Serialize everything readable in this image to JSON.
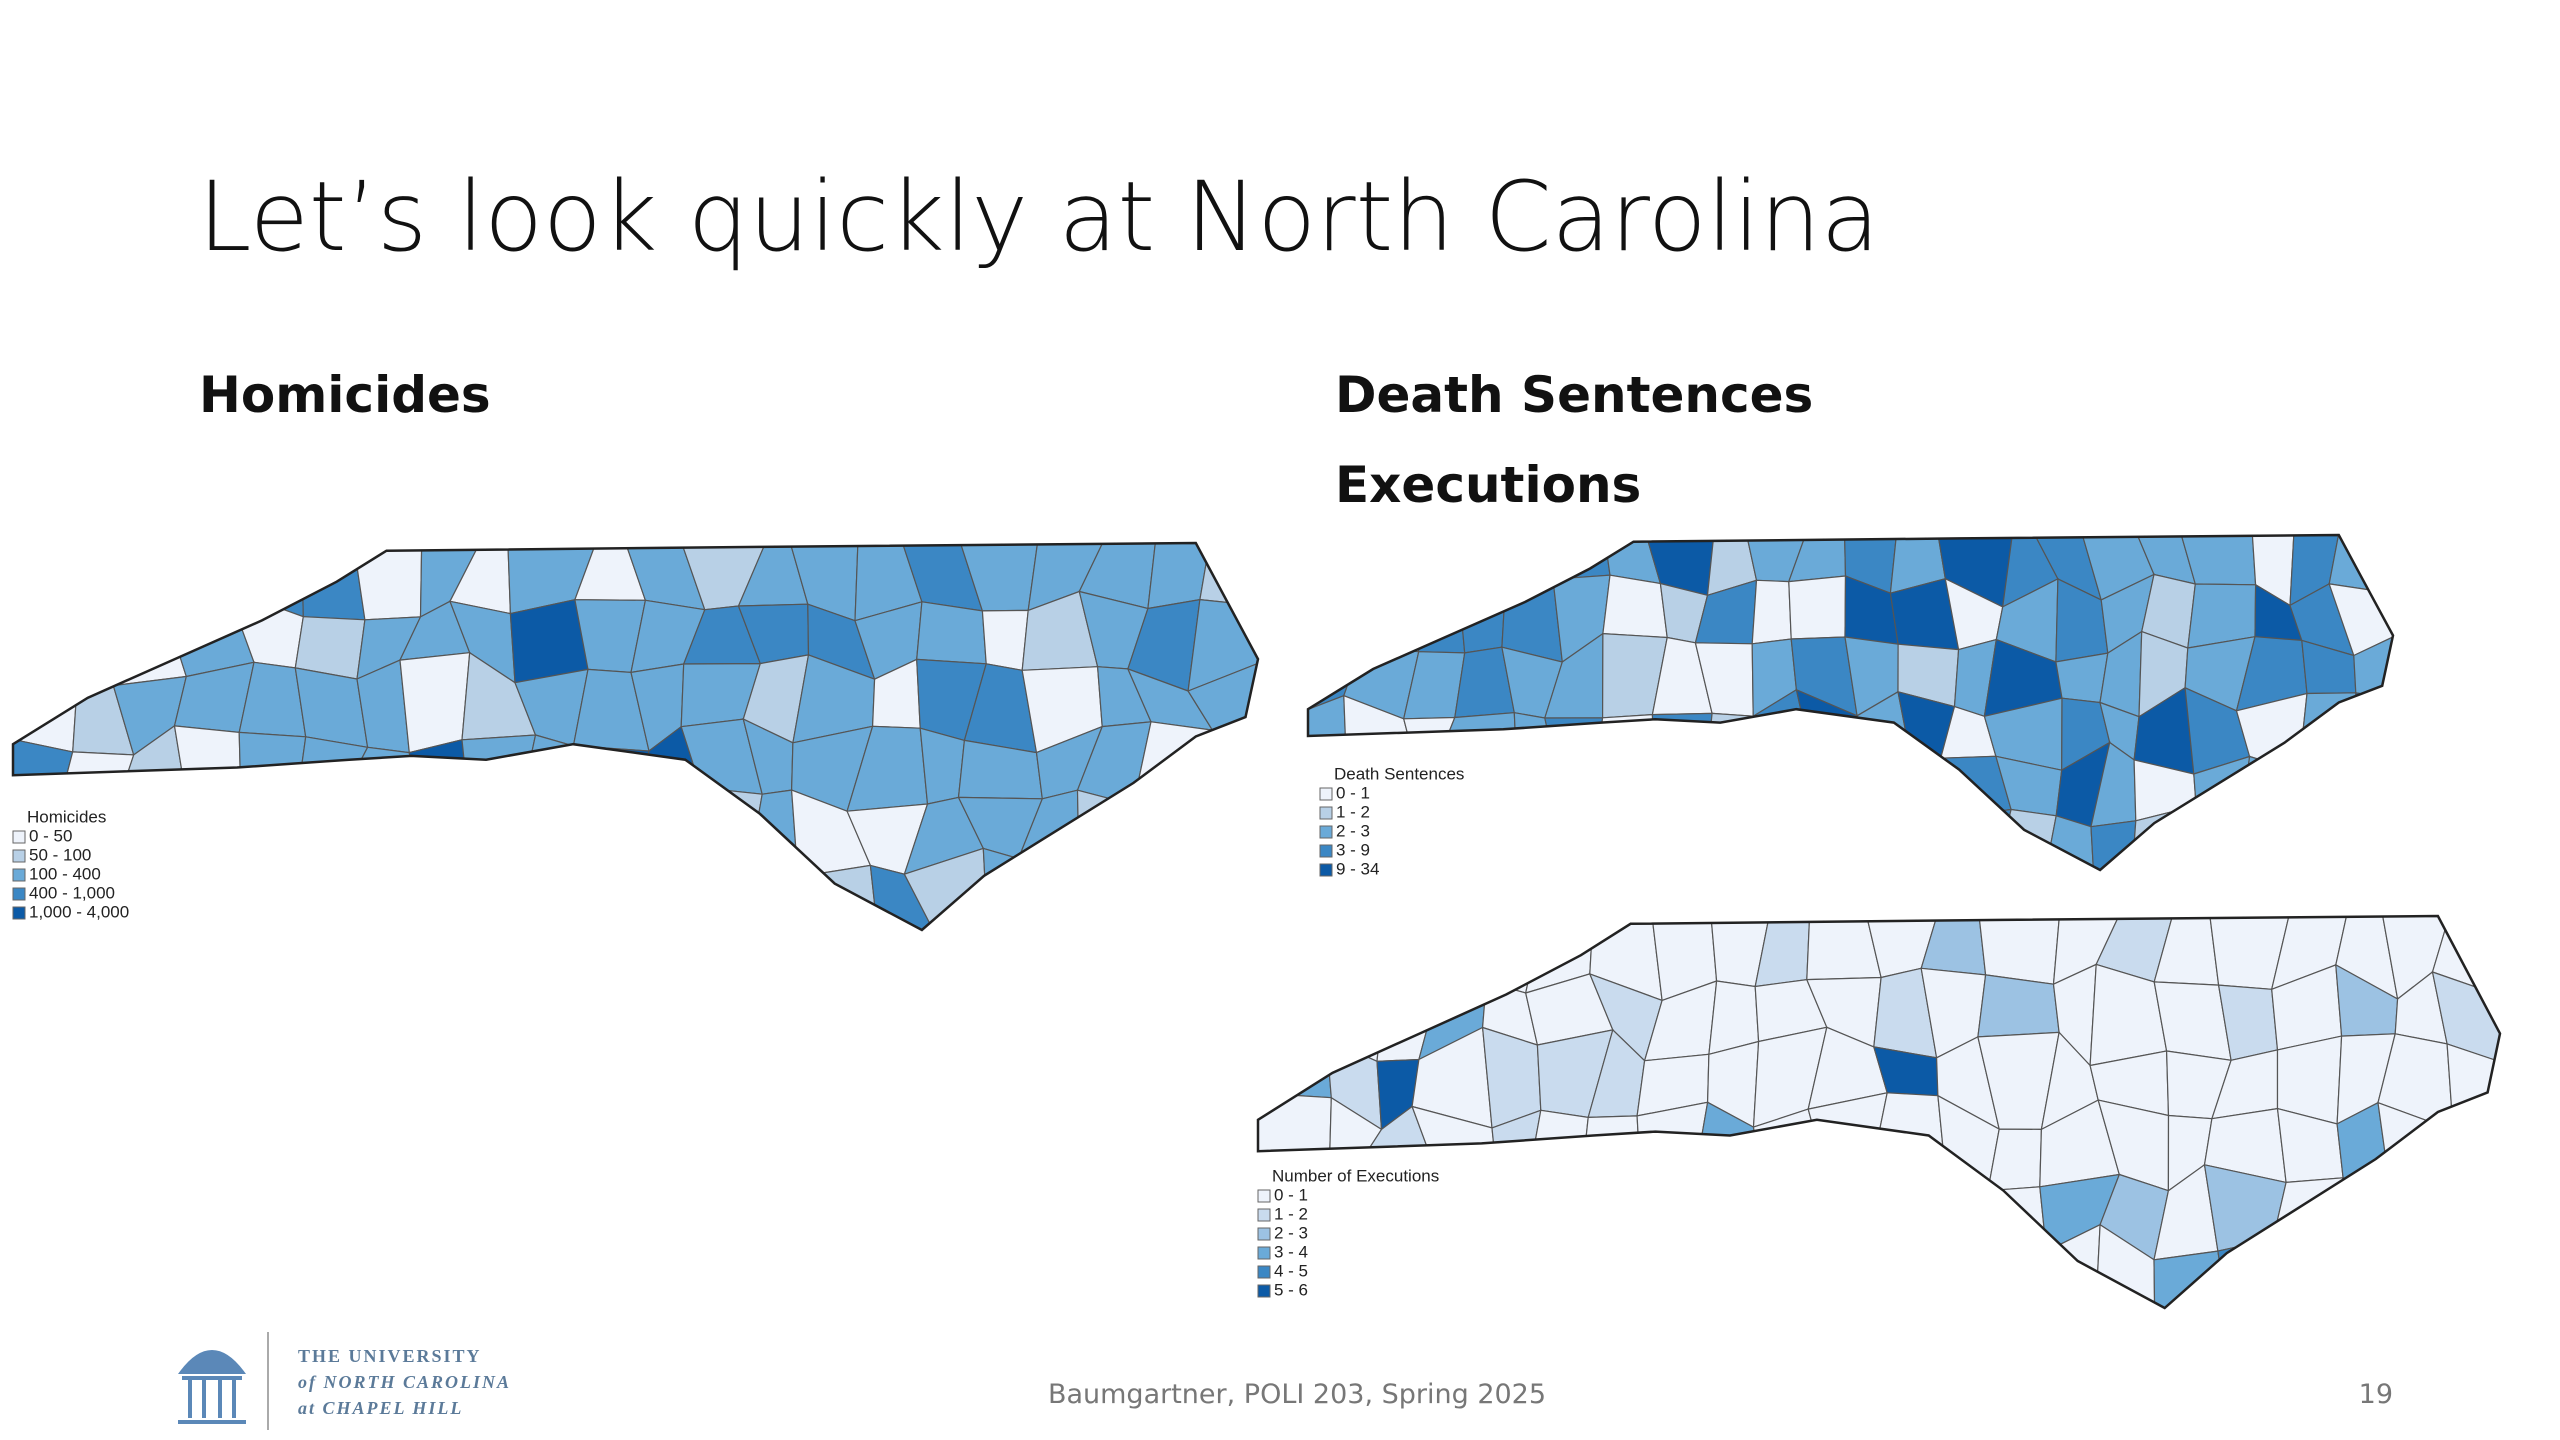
{
  "slide": {
    "title": "Let’s look quickly at North Carolina",
    "footer": "Baumgartner, POLI 203, Spring 2025",
    "page_number": "19",
    "logo": [
      "THE UNIVERSITY",
      "of NORTH CAROLINA",
      "at CHAPEL HILL"
    ]
  },
  "maps": [
    {
      "heading": "Homicides",
      "legend_title": "Homicides",
      "legend": [
        "0 - 50",
        "50 - 100",
        "100 - 400",
        "400 - 1,000",
        "1,000 - 4,000"
      ]
    },
    {
      "heading": "Death Sentences",
      "legend_title": "Death Sentences",
      "legend": [
        "0 - 1",
        "1 - 2",
        "2 - 3",
        "3 - 9",
        "9 - 34"
      ]
    },
    {
      "heading": "Executions",
      "legend_title": "Number of Executions",
      "legend": [
        "0 - 1",
        "1 - 2",
        "2 - 3",
        "3 - 4",
        "4 - 5",
        "5 - 6"
      ]
    }
  ]
}
